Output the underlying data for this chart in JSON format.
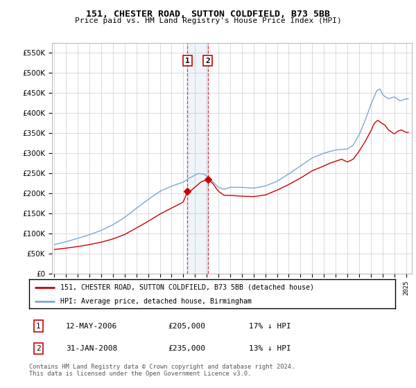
{
  "title": "151, CHESTER ROAD, SUTTON COLDFIELD, B73 5BB",
  "subtitle": "Price paid vs. HM Land Registry's House Price Index (HPI)",
  "hpi_label": "HPI: Average price, detached house, Birmingham",
  "property_label": "151, CHESTER ROAD, SUTTON COLDFIELD, B73 5BB (detached house)",
  "footnote": "Contains HM Land Registry data © Crown copyright and database right 2024.\nThis data is licensed under the Open Government Licence v3.0.",
  "transaction1": {
    "label": "1",
    "date": "12-MAY-2006",
    "price": "£205,000",
    "hpi": "17% ↓ HPI"
  },
  "transaction2": {
    "label": "2",
    "date": "31-JAN-2008",
    "price": "£235,000",
    "hpi": "13% ↓ HPI"
  },
  "sale1_year": 2006.36,
  "sale2_year": 2008.08,
  "sale1_price": 205000,
  "sale2_price": 235000,
  "hpi_color": "#7aa8d2",
  "property_color": "#cc0000",
  "ylim": [
    0,
    575000
  ],
  "xlim_start": 1995.0,
  "xlim_end": 2025.5
}
